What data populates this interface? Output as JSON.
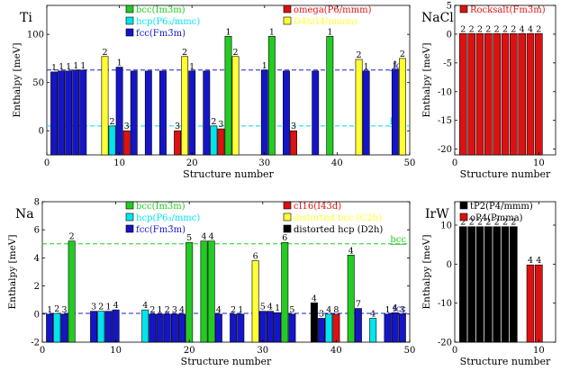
{
  "chart_data": [
    {
      "id": "Ti",
      "type": "bar",
      "panel_label": "Ti",
      "xlabel": "Structure number",
      "ylabel": "Enthalpy [meV]",
      "xlim": [
        0,
        50
      ],
      "ylim": [
        -25,
        130
      ],
      "xticks": [
        0,
        10,
        20,
        30,
        40,
        50
      ],
      "yticks": [
        0,
        50,
        100
      ],
      "reference_lines": [
        {
          "label": "fcc",
          "y": 63,
          "color": "#1f1fcf"
        },
        {
          "label": "hcp",
          "y": 5,
          "color": "#00d8e8"
        }
      ],
      "legend": [
        {
          "name": "bcc(Im3̄m)",
          "color": "#22cc22",
          "text_color": "#22cc22"
        },
        {
          "name": "omega(P6/mmm)",
          "color": "#dd1111",
          "text_color": "#dd1111"
        },
        {
          "name": "hcp(P6₃/mmc)",
          "color": "#00e5ee",
          "text_color": "#00e5ee"
        },
        {
          "name": "D4h(I4/mmm)",
          "color": "#ffff33",
          "text_color": "#ffff33"
        },
        {
          "name": "fcc(Fm3̄m)",
          "color": "#1515c8",
          "text_color": "#1515c8"
        }
      ],
      "bars": [
        {
          "x": 1,
          "value": 61,
          "color": "#1515c8",
          "label": "1"
        },
        {
          "x": 2,
          "value": 62,
          "color": "#1515c8",
          "label": "1"
        },
        {
          "x": 3,
          "value": 62,
          "color": "#1515c8",
          "label": "1"
        },
        {
          "x": 4,
          "value": 63,
          "color": "#1515c8",
          "label": "1"
        },
        {
          "x": 5,
          "value": 63,
          "color": "#1515c8",
          "label": "1"
        },
        {
          "x": 8,
          "value": 77,
          "color": "#ffff33",
          "label": "2"
        },
        {
          "x": 9,
          "value": 5,
          "color": "#00e5ee",
          "label": "2"
        },
        {
          "x": 10,
          "value": 66,
          "color": "#1515c8",
          "label": "1"
        },
        {
          "x": 11,
          "value": 0,
          "color": "#dd1111",
          "label": "3"
        },
        {
          "x": 12,
          "value": 62,
          "color": "#1515c8",
          "label": ""
        },
        {
          "x": 14,
          "value": 62,
          "color": "#1515c8",
          "label": ""
        },
        {
          "x": 16,
          "value": 62,
          "color": "#1515c8",
          "label": ""
        },
        {
          "x": 18,
          "value": 0,
          "color": "#dd1111",
          "label": "3"
        },
        {
          "x": 19,
          "value": 77,
          "color": "#ffff33",
          "label": "2"
        },
        {
          "x": 20,
          "value": 62,
          "color": "#1515c8",
          "label": "1"
        },
        {
          "x": 22,
          "value": 62,
          "color": "#1515c8",
          "label": ""
        },
        {
          "x": 23,
          "value": 5,
          "color": "#00e5ee",
          "label": "2"
        },
        {
          "x": 24,
          "value": 2,
          "color": "#dd1111",
          "label": "3"
        },
        {
          "x": 25,
          "value": 98,
          "color": "#22cc22",
          "label": "1"
        },
        {
          "x": 26,
          "value": 77,
          "color": "#ffff33",
          "label": "2"
        },
        {
          "x": 30,
          "value": 63,
          "color": "#1515c8",
          "label": "1"
        },
        {
          "x": 31,
          "value": 98,
          "color": "#22cc22",
          "label": "1"
        },
        {
          "x": 33,
          "value": 62,
          "color": "#1515c8",
          "label": ""
        },
        {
          "x": 34,
          "value": 0,
          "color": "#dd1111",
          "label": "3"
        },
        {
          "x": 37,
          "value": 62,
          "color": "#1515c8",
          "label": ""
        },
        {
          "x": 39,
          "value": 98,
          "color": "#22cc22",
          "label": "1"
        },
        {
          "x": 43,
          "value": 74,
          "color": "#ffff33",
          "label": "2"
        },
        {
          "x": 44,
          "value": 62,
          "color": "#1515c8",
          "label": "1"
        },
        {
          "x": 48,
          "value": 64,
          "color": "#1515c8",
          "label": "1"
        },
        {
          "x": 49,
          "value": 75,
          "color": "#ffff33",
          "label": "2"
        }
      ]
    },
    {
      "id": "NaCl",
      "type": "bar",
      "panel_label": "NaCl",
      "xlabel": "Structure number",
      "ylabel": "Enthalpy [meV]",
      "xlim": [
        0,
        12
      ],
      "ylim": [
        -21,
        5
      ],
      "xticks": [
        0,
        10
      ],
      "yticks": [
        -20,
        -15,
        -10,
        -5,
        0,
        5
      ],
      "legend": [
        {
          "name": "Rocksalt(Fm3̄m)",
          "color": "#dd1111",
          "text_color": "#dd1111"
        }
      ],
      "bars": [
        {
          "x": 1,
          "value": 0.1,
          "color": "#dd1111",
          "label": "2"
        },
        {
          "x": 2,
          "value": 0.1,
          "color": "#dd1111",
          "label": "2"
        },
        {
          "x": 3,
          "value": 0.1,
          "color": "#dd1111",
          "label": "2"
        },
        {
          "x": 4,
          "value": 0.1,
          "color": "#dd1111",
          "label": "2"
        },
        {
          "x": 5,
          "value": 0.1,
          "color": "#dd1111",
          "label": "2"
        },
        {
          "x": 6,
          "value": 0.1,
          "color": "#dd1111",
          "label": "2"
        },
        {
          "x": 7,
          "value": 0.1,
          "color": "#dd1111",
          "label": "2"
        },
        {
          "x": 8,
          "value": 0.1,
          "color": "#dd1111",
          "label": "4"
        },
        {
          "x": 9,
          "value": 0.1,
          "color": "#dd1111",
          "label": "4"
        },
        {
          "x": 10,
          "value": 0.1,
          "color": "#dd1111",
          "label": "2"
        }
      ]
    },
    {
      "id": "Na",
      "type": "bar",
      "panel_label": "Na",
      "xlabel": "Structure number",
      "ylabel": "Enthalpy [meV]",
      "xlim": [
        0,
        50
      ],
      "ylim": [
        -2,
        8
      ],
      "xticks": [
        0,
        10,
        20,
        30,
        40,
        50
      ],
      "yticks": [
        -2,
        0,
        2,
        4,
        6,
        8
      ],
      "reference_lines": [
        {
          "label": "bcc",
          "y": 5,
          "color": "#22cc22"
        },
        {
          "label": "fcc",
          "y": 0.05,
          "color": "#1f1fcf"
        }
      ],
      "legend": [
        {
          "name": "bcc(Im3̄m)",
          "color": "#22cc22",
          "text_color": "#22cc22"
        },
        {
          "name": "cI16(I4̄3d)",
          "color": "#dd1111",
          "text_color": "#dd1111"
        },
        {
          "name": "hcp(P6₃/mmc)",
          "color": "#00e5ee",
          "text_color": "#00e5ee"
        },
        {
          "name": "distorted bcc (C2h)",
          "color": "#ffff33",
          "text_color": "#ffff33"
        },
        {
          "name": "fcc(Fm3̄m)",
          "color": "#1515c8",
          "text_color": "#1515c8"
        },
        {
          "name": "distorted hcp (D2h)",
          "color": "#000000",
          "text_color": "#000000"
        }
      ],
      "bars": [
        {
          "x": 1,
          "value": 0.0,
          "color": "#1515c8",
          "label": "1"
        },
        {
          "x": 2,
          "value": 0.05,
          "color": "#00e5ee",
          "label": "2"
        },
        {
          "x": 3,
          "value": 0.0,
          "color": "#1515c8",
          "label": "3"
        },
        {
          "x": 4,
          "value": 5.2,
          "color": "#22cc22",
          "label": "2"
        },
        {
          "x": 7,
          "value": 0.2,
          "color": "#1515c8",
          "label": "3"
        },
        {
          "x": 8,
          "value": 0.2,
          "color": "#00e5ee",
          "label": "2"
        },
        {
          "x": 9,
          "value": 0.2,
          "color": "#1515c8",
          "label": "1"
        },
        {
          "x": 10,
          "value": 0.3,
          "color": "#1515c8",
          "label": "4"
        },
        {
          "x": 14,
          "value": 0.3,
          "color": "#00e5ee",
          "label": "4"
        },
        {
          "x": 15,
          "value": 0.0,
          "color": "#1515c8",
          "label": "2"
        },
        {
          "x": 16,
          "value": 0.0,
          "color": "#1515c8",
          "label": "1"
        },
        {
          "x": 17,
          "value": 0.0,
          "color": "#1515c8",
          "label": "2"
        },
        {
          "x": 18,
          "value": 0.0,
          "color": "#1515c8",
          "label": "3"
        },
        {
          "x": 19,
          "value": 0.0,
          "color": "#1515c8",
          "label": "4"
        },
        {
          "x": 20,
          "value": 5.1,
          "color": "#22cc22",
          "label": "5"
        },
        {
          "x": 22,
          "value": 5.2,
          "color": "#22cc22",
          "label": "4"
        },
        {
          "x": 23,
          "value": 5.2,
          "color": "#22cc22",
          "label": "4"
        },
        {
          "x": 24,
          "value": 0.0,
          "color": "#1515c8",
          "label": "4"
        },
        {
          "x": 26,
          "value": 0.0,
          "color": "#1515c8",
          "label": "2"
        },
        {
          "x": 27,
          "value": 0.0,
          "color": "#1515c8",
          "label": "1"
        },
        {
          "x": 29,
          "value": 3.8,
          "color": "#ffff33",
          "label": "6"
        },
        {
          "x": 30,
          "value": 0.2,
          "color": "#1515c8",
          "label": "5"
        },
        {
          "x": 31,
          "value": 0.2,
          "color": "#1515c8",
          "label": "4"
        },
        {
          "x": 32,
          "value": 0.1,
          "color": "#1515c8",
          "label": "1"
        },
        {
          "x": 33,
          "value": 5.1,
          "color": "#22cc22",
          "label": "6"
        },
        {
          "x": 34,
          "value": 0.0,
          "color": "#1515c8",
          "label": "5"
        },
        {
          "x": 37,
          "value": 0.8,
          "color": "#000000",
          "label": "4"
        },
        {
          "x": 38,
          "value": -0.3,
          "color": "#1515c8",
          "label": "3"
        },
        {
          "x": 39,
          "value": 0.0,
          "color": "#00e5ee",
          "label": "4"
        },
        {
          "x": 40,
          "value": 0.0,
          "color": "#dd1111",
          "label": "8"
        },
        {
          "x": 42,
          "value": 4.2,
          "color": "#22cc22",
          "label": "4"
        },
        {
          "x": 43,
          "value": 0.4,
          "color": "#1515c8",
          "label": "7"
        },
        {
          "x": 45,
          "value": -0.3,
          "color": "#00e5ee",
          "label": "4"
        },
        {
          "x": 47,
          "value": 0.0,
          "color": "#1515c8",
          "label": "1"
        },
        {
          "x": 48,
          "value": 0.1,
          "color": "#1515c8",
          "label": "4"
        },
        {
          "x": 49,
          "value": 0.0,
          "color": "#1515c8",
          "label": "3"
        }
      ]
    },
    {
      "id": "IrW",
      "type": "bar",
      "panel_label": "IrW",
      "xlabel": "Structure number",
      "ylabel": "Enthalpy [meV]",
      "xlim": [
        0,
        12
      ],
      "ylim": [
        -20,
        16
      ],
      "xticks": [
        0,
        10
      ],
      "yticks": [
        -20,
        -10,
        0,
        10
      ],
      "legend": [
        {
          "name": "tP2(P4/mmm)",
          "color": "#000000",
          "text_color": "#000000"
        },
        {
          "name": "oP4(Pmma)",
          "color": "#dd1111",
          "text_color": "#000000"
        }
      ],
      "bars": [
        {
          "x": 1,
          "value": 9.6,
          "color": "#000000",
          "label": "2"
        },
        {
          "x": 2,
          "value": 9.6,
          "color": "#000000",
          "label": "2"
        },
        {
          "x": 3,
          "value": 9.6,
          "color": "#000000",
          "label": "2"
        },
        {
          "x": 4,
          "value": 9.6,
          "color": "#000000",
          "label": "2"
        },
        {
          "x": 5,
          "value": 9.6,
          "color": "#000000",
          "label": "2"
        },
        {
          "x": 6,
          "value": 9.6,
          "color": "#000000",
          "label": "2"
        },
        {
          "x": 7,
          "value": 9.6,
          "color": "#000000",
          "label": "2"
        },
        {
          "x": 9,
          "value": -0.2,
          "color": "#dd1111",
          "label": "4"
        },
        {
          "x": 10,
          "value": -0.2,
          "color": "#dd1111",
          "label": "4"
        }
      ]
    }
  ]
}
